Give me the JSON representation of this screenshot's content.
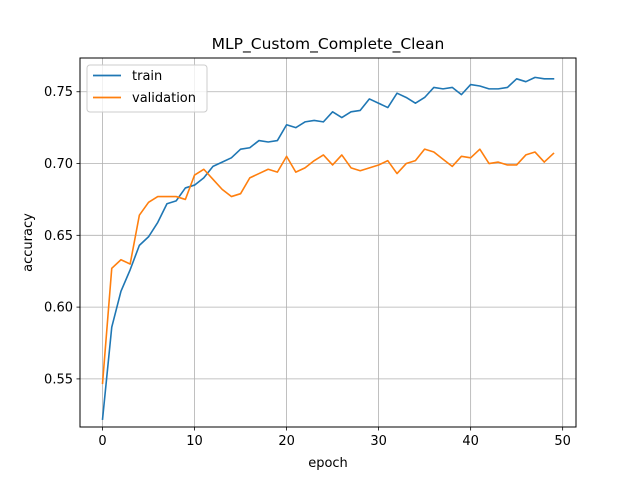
{
  "chart_data": {
    "type": "line",
    "title": "MLP_Custom_Complete_Clean",
    "xlabel": "epoch",
    "ylabel": "accuracy",
    "xlim": [
      -2.45,
      51.45
    ],
    "ylim": [
      0.5165,
      0.7735
    ],
    "xticks": [
      0,
      10,
      20,
      30,
      40,
      50
    ],
    "yticks": [
      0.55,
      0.6,
      0.65,
      0.7,
      0.75
    ],
    "ytick_labels": [
      "0.55",
      "0.60",
      "0.65",
      "0.70",
      "0.75"
    ],
    "grid": true,
    "legend_position": "upper-left",
    "x": [
      0,
      1,
      2,
      3,
      4,
      5,
      6,
      7,
      8,
      9,
      10,
      11,
      12,
      13,
      14,
      15,
      16,
      17,
      18,
      19,
      20,
      21,
      22,
      23,
      24,
      25,
      26,
      27,
      28,
      29,
      30,
      31,
      32,
      33,
      34,
      35,
      36,
      37,
      38,
      39,
      40,
      41,
      42,
      43,
      44,
      45,
      46,
      47,
      48,
      49
    ],
    "series": [
      {
        "name": "train",
        "color": "#1f77b4",
        "values": [
          0.522,
          0.586,
          0.611,
          0.626,
          0.643,
          0.649,
          0.659,
          0.672,
          0.674,
          0.683,
          0.685,
          0.69,
          0.698,
          0.701,
          0.704,
          0.71,
          0.711,
          0.716,
          0.715,
          0.716,
          0.727,
          0.725,
          0.729,
          0.73,
          0.729,
          0.736,
          0.732,
          0.736,
          0.737,
          0.745,
          0.742,
          0.739,
          0.749,
          0.746,
          0.742,
          0.746,
          0.753,
          0.752,
          0.753,
          0.748,
          0.755,
          0.754,
          0.752,
          0.752,
          0.753,
          0.759,
          0.757,
          0.76,
          0.759,
          0.759
        ]
      },
      {
        "name": "validation",
        "color": "#ff7f0e",
        "values": [
          0.547,
          0.627,
          0.633,
          0.63,
          0.664,
          0.673,
          0.677,
          0.677,
          0.677,
          0.675,
          0.692,
          0.696,
          0.689,
          0.682,
          0.677,
          0.679,
          0.69,
          0.693,
          0.696,
          0.694,
          0.705,
          0.694,
          0.697,
          0.702,
          0.706,
          0.699,
          0.706,
          0.697,
          0.695,
          0.697,
          0.699,
          0.702,
          0.693,
          0.7,
          0.702,
          0.71,
          0.708,
          0.703,
          0.698,
          0.705,
          0.704,
          0.71,
          0.7,
          0.701,
          0.699,
          0.699,
          0.706,
          0.708,
          0.701,
          0.707
        ]
      }
    ]
  }
}
